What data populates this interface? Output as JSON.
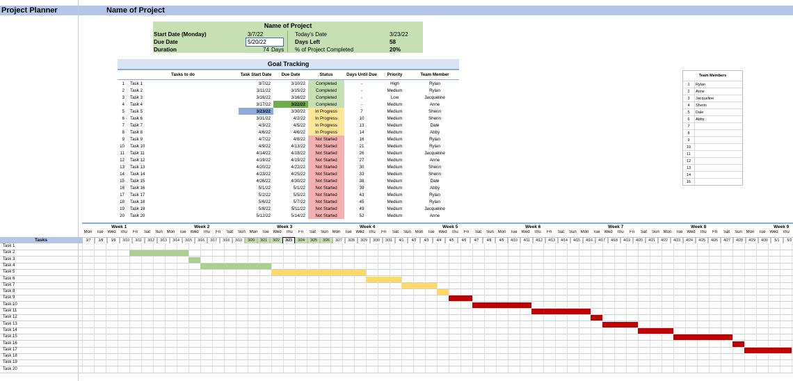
{
  "app": {
    "title": "Project Planner",
    "project_name": "Name of Project"
  },
  "summary": {
    "title": "Name of Project",
    "start_label": "Start Date (Monday)",
    "start_value": "3/7/22",
    "due_label": "Due Date",
    "due_value": "5/20/22",
    "duration_label": "Duration",
    "duration_value": "74",
    "duration_unit": "Days",
    "today_label": "Today's Date",
    "today_value": "3/23/22",
    "daysleft_label": "Days Left",
    "daysleft_value": "58",
    "pct_label": "% of Project Completed",
    "pct_value": "20%"
  },
  "goal": {
    "title": "Goal Tracking",
    "headers": [
      "Tasks to do",
      "Task Start Date",
      "Due Date",
      "Status",
      "Days Until Due",
      "Priority",
      "Team Member"
    ],
    "rows": [
      {
        "n": "1",
        "task": "Task 1",
        "start": "3/7/22",
        "due": "3/10/22",
        "status": "Completed",
        "days": "-",
        "priority": "High",
        "member": "Rylan"
      },
      {
        "n": "2",
        "task": "Task 2",
        "start": "3/11/22",
        "due": "3/15/22",
        "status": "Completed",
        "days": "-",
        "priority": "Medium",
        "member": "Rylan"
      },
      {
        "n": "3",
        "task": "Task 3",
        "start": "3/16/22",
        "due": "3/16/22",
        "status": "Completed",
        "days": "-",
        "priority": "Low",
        "member": "Jacqueline"
      },
      {
        "n": "4",
        "task": "Task 4",
        "start": "3/17/22",
        "due": "3/22/22",
        "status": "Completed",
        "days": "-",
        "priority": "Medium",
        "member": "Anne"
      },
      {
        "n": "5",
        "task": "Task 5",
        "start": "3/23/22",
        "due": "3/30/22",
        "status": "In Progress",
        "days": "7",
        "priority": "Medium",
        "member": "Sherin"
      },
      {
        "n": "6",
        "task": "Task 6",
        "start": "3/31/22",
        "due": "4/2/22",
        "status": "In Progress",
        "days": "10",
        "priority": "Medium",
        "member": "Sherin"
      },
      {
        "n": "7",
        "task": "Task 7",
        "start": "4/3/22",
        "due": "4/5/22",
        "status": "In Progress",
        "days": "13",
        "priority": "Medium",
        "member": "Dale"
      },
      {
        "n": "8",
        "task": "Task 8",
        "start": "4/6/22",
        "due": "4/6/22",
        "status": "In Progress",
        "days": "14",
        "priority": "Medium",
        "member": "Abby"
      },
      {
        "n": "9",
        "task": "Task 9",
        "start": "4/7/22",
        "due": "4/8/22",
        "status": "Not Started",
        "days": "16",
        "priority": "Medium",
        "member": "Rylan"
      },
      {
        "n": "10",
        "task": "Task 10",
        "start": "4/9/22",
        "due": "4/13/22",
        "status": "Not Started",
        "days": "21",
        "priority": "Medium",
        "member": "Rylan"
      },
      {
        "n": "11",
        "task": "Task 11",
        "start": "4/14/22",
        "due": "4/18/22",
        "status": "Not Started",
        "days": "26",
        "priority": "Medium",
        "member": "Jacqueline"
      },
      {
        "n": "12",
        "task": "Task 12",
        "start": "4/19/22",
        "due": "4/19/22",
        "status": "Not Started",
        "days": "27",
        "priority": "Medium",
        "member": "Anne"
      },
      {
        "n": "13",
        "task": "Task 13",
        "start": "4/20/22",
        "due": "4/22/22",
        "status": "Not Started",
        "days": "30",
        "priority": "Medium",
        "member": "Sherin"
      },
      {
        "n": "14",
        "task": "Task 14",
        "start": "4/23/22",
        "due": "4/25/22",
        "status": "Not Started",
        "days": "33",
        "priority": "Medium",
        "member": "Sherin"
      },
      {
        "n": "15",
        "task": "Task 15",
        "start": "4/26/22",
        "due": "4/30/22",
        "status": "Not Started",
        "days": "38",
        "priority": "Medium",
        "member": "Dale"
      },
      {
        "n": "16",
        "task": "Task 16",
        "start": "5/1/22",
        "due": "5/1/22",
        "status": "Not Started",
        "days": "39",
        "priority": "Medium",
        "member": "Abby"
      },
      {
        "n": "17",
        "task": "Task 17",
        "start": "5/2/22",
        "due": "5/5/22",
        "status": "Not Started",
        "days": "43",
        "priority": "Medium",
        "member": "Rylan"
      },
      {
        "n": "18",
        "task": "Task 18",
        "start": "5/6/22",
        "due": "5/7/22",
        "status": "Not Started",
        "days": "45",
        "priority": "Medium",
        "member": "Rylan"
      },
      {
        "n": "19",
        "task": "Task 19",
        "start": "5/8/22",
        "due": "5/11/22",
        "status": "Not Started",
        "days": "49",
        "priority": "Medium",
        "member": "Jacqueline"
      },
      {
        "n": "20",
        "task": "Task 20",
        "start": "5/12/22",
        "due": "5/14/22",
        "status": "Not Started",
        "days": "52",
        "priority": "Medium",
        "member": "Anne"
      }
    ]
  },
  "team": {
    "title": "Team Members",
    "rows": [
      {
        "n": "1",
        "name": "Rylan"
      },
      {
        "n": "2",
        "name": "Anne"
      },
      {
        "n": "3",
        "name": "Jacqueline"
      },
      {
        "n": "4",
        "name": "Sherin"
      },
      {
        "n": "5",
        "name": "Dale"
      },
      {
        "n": "6",
        "name": "Abby"
      },
      {
        "n": "7",
        "name": ""
      },
      {
        "n": "8",
        "name": ""
      },
      {
        "n": "9",
        "name": ""
      },
      {
        "n": "10",
        "name": ""
      },
      {
        "n": "11",
        "name": ""
      },
      {
        "n": "12",
        "name": ""
      },
      {
        "n": "13",
        "name": ""
      },
      {
        "n": "14",
        "name": ""
      },
      {
        "n": "15",
        "name": ""
      }
    ]
  },
  "gantt": {
    "tasks_header": "Tasks",
    "weeks": [
      "Week 1",
      "Week 2",
      "Week 3",
      "Week 4",
      "Week 5",
      "Week 6",
      "Week 7",
      "Week 8",
      "Week 9"
    ],
    "days": [
      "Mon",
      "Tue",
      "Wed",
      "Thu",
      "Fri",
      "Sat",
      "Sun",
      "Mon",
      "Tue",
      "Wed",
      "Thu",
      "Fri",
      "Sat",
      "Sun",
      "Mon",
      "Tue",
      "Wed",
      "Thu",
      "Fri",
      "Sat",
      "Sun",
      "Mon",
      "Tue",
      "Wed",
      "Thu",
      "Fri",
      "Sat",
      "Sun",
      "Mon",
      "Tue",
      "Wed",
      "Thu",
      "Fri",
      "Sat",
      "Sun",
      "Mon",
      "Tue",
      "Wed",
      "Thu",
      "Fri",
      "Sat",
      "Sun",
      "Mon",
      "Tue",
      "Wed",
      "Thu",
      "Fri",
      "Sat",
      "Sun",
      "Mon",
      "Tue",
      "Wed",
      "Thu",
      "Fri",
      "Sat",
      "Sun",
      "Mon",
      "Tue",
      "Wed",
      "Thu"
    ],
    "dates": [
      "3/7",
      "3/8",
      "3/9",
      "3/10",
      "3/11",
      "3/12",
      "3/13",
      "3/14",
      "3/15",
      "3/16",
      "3/17",
      "3/18",
      "3/19",
      "3/20",
      "3/21",
      "3/22",
      "3/23",
      "3/24",
      "3/25",
      "3/26",
      "3/27",
      "3/28",
      "3/29",
      "3/30",
      "3/31",
      "4/1",
      "4/2",
      "4/3",
      "4/4",
      "4/5",
      "4/6",
      "4/7",
      "4/8",
      "4/9",
      "4/10",
      "4/11",
      "4/12",
      "4/13",
      "4/14",
      "4/15",
      "4/16",
      "4/17",
      "4/18",
      "4/19",
      "4/20",
      "4/21",
      "4/22",
      "4/23",
      "4/24",
      "4/25",
      "4/26",
      "4/27",
      "4/28",
      "4/29",
      "4/30",
      "5/1",
      "5/2",
      "5/3",
      "5/4",
      "5/5"
    ],
    "highlighted_dates": [
      "3/20",
      "3/21",
      "3/22",
      "3/24",
      "3/25",
      "3/26"
    ],
    "today_date": "3/23",
    "colors": {
      "completed": "#a9d08e",
      "in_progress": "#ffd966",
      "not_started": "#c00000"
    }
  }
}
